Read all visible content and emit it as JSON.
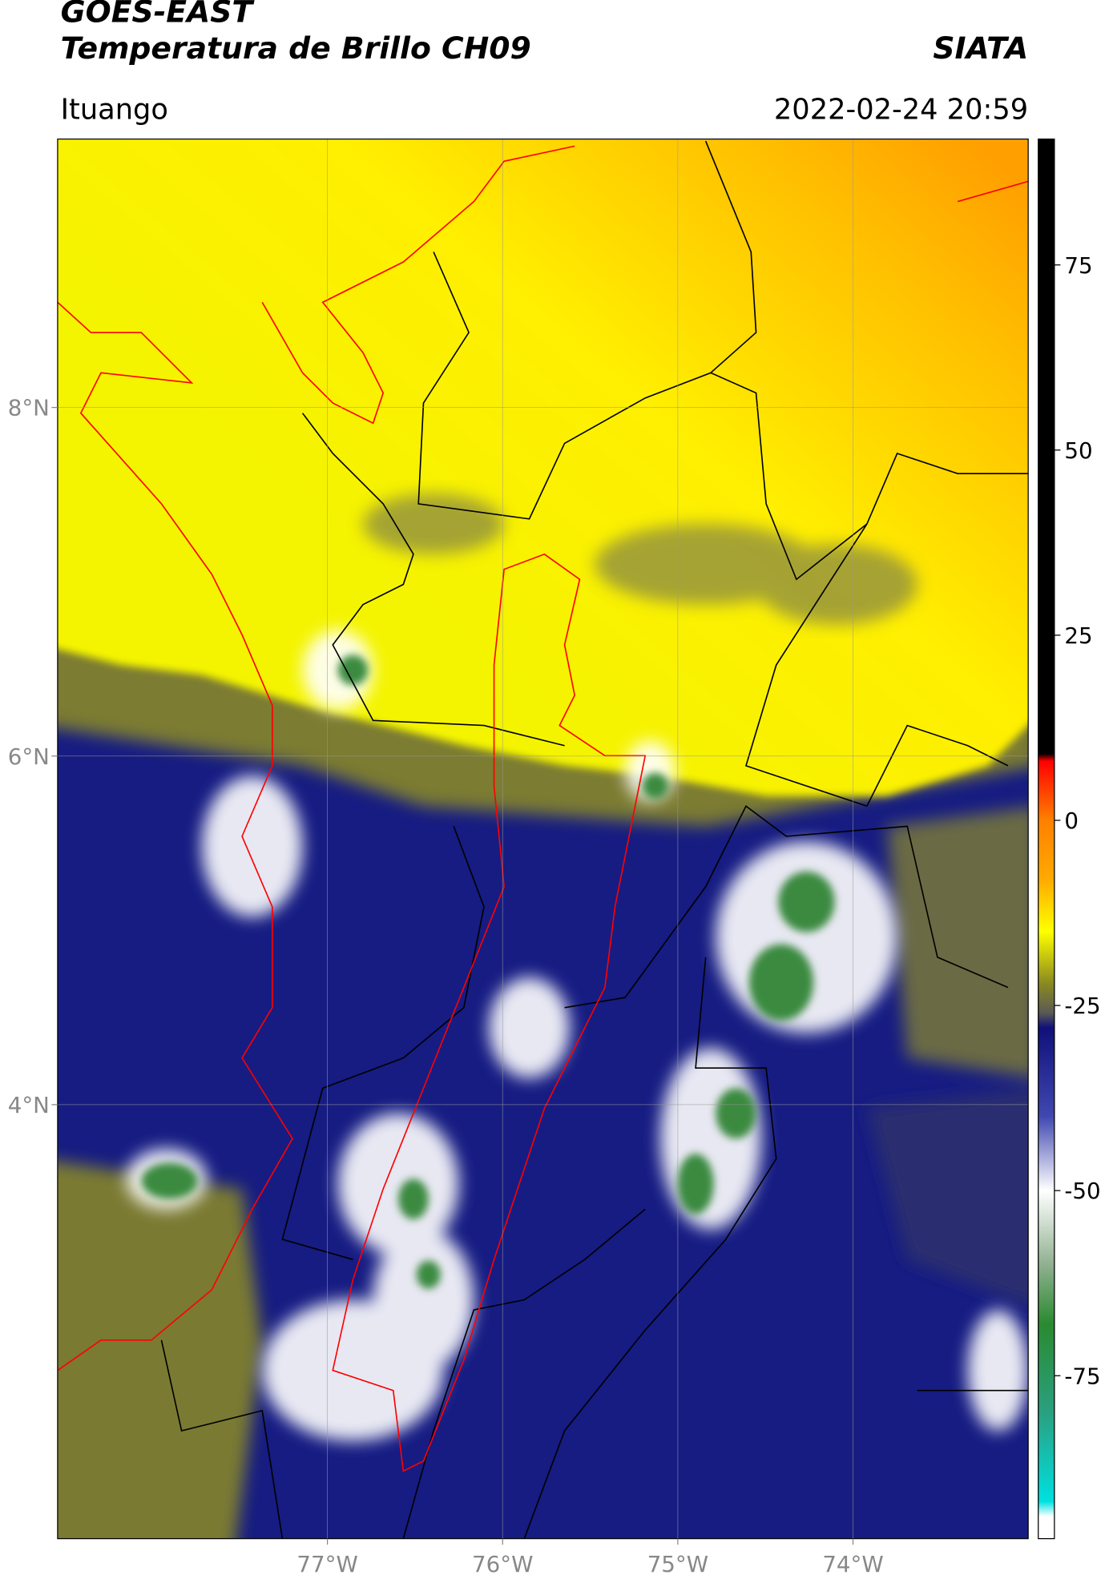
{
  "header": {
    "title": "GOES-EAST",
    "subtitle": "Temperatura de Brillo CH09",
    "source": "SIATA",
    "location": "Ituango",
    "datetime": "2022-02-24 20:59"
  },
  "map": {
    "xlim": [
      -78.54,
      -73.0
    ],
    "ylim": [
      1.51,
      9.54
    ],
    "xticks": [
      {
        "value": -77,
        "label": "77°W"
      },
      {
        "value": -76,
        "label": "76°W"
      },
      {
        "value": -75,
        "label": "75°W"
      },
      {
        "value": -74,
        "label": "74°W"
      }
    ],
    "yticks": [
      {
        "value": 8,
        "label": "8°N"
      },
      {
        "value": 6,
        "label": "6°N"
      },
      {
        "value": 4,
        "label": "4°N"
      }
    ],
    "grid": true
  },
  "colorbar": {
    "lim": [
      -97,
      92
    ],
    "ticks": [
      75,
      50,
      25,
      0,
      -25,
      -50,
      -75
    ],
    "colormap": [
      {
        "value": 92,
        "color": "#000000"
      },
      {
        "value": 9,
        "color": "#000000"
      },
      {
        "value": 8,
        "color": "#ff0000"
      },
      {
        "value": 0,
        "color": "#ff8000"
      },
      {
        "value": -8,
        "color": "#ffaa00"
      },
      {
        "value": -15,
        "color": "#ffff00"
      },
      {
        "value": -22,
        "color": "#8a8a20"
      },
      {
        "value": -26,
        "color": "#5a5a55"
      },
      {
        "value": -28,
        "color": "#10107a"
      },
      {
        "value": -40,
        "color": "#4048b0"
      },
      {
        "value": -50,
        "color": "#ffffff"
      },
      {
        "value": -60,
        "color": "#90b090"
      },
      {
        "value": -68,
        "color": "#2a8a30"
      },
      {
        "value": -80,
        "color": "#2aa080"
      },
      {
        "value": -92,
        "color": "#00e0e0"
      },
      {
        "value": -94,
        "color": "#ffffff"
      },
      {
        "value": -97,
        "color": "#ffffff"
      }
    ]
  }
}
